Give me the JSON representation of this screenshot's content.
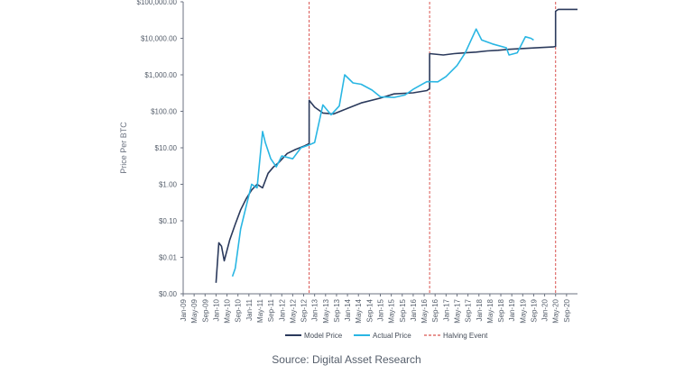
{
  "chart_data": {
    "type": "line",
    "ylabel": "Price Per BTC",
    "yscale": "log",
    "ylim": [
      0.001,
      100000
    ],
    "y_ticks": [
      {
        "value": 0.001,
        "label": "$0.00"
      },
      {
        "value": 0.01,
        "label": "$0.01"
      },
      {
        "value": 0.1,
        "label": "$0.10"
      },
      {
        "value": 1,
        "label": "$1.00"
      },
      {
        "value": 10,
        "label": "$10.00"
      },
      {
        "value": 100,
        "label": "$100.00"
      },
      {
        "value": 1000,
        "label": "$1,000.00"
      },
      {
        "value": 10000,
        "label": "$10,000.00"
      },
      {
        "value": 100000,
        "label": "$100,000.00"
      }
    ],
    "xlim": [
      "2009-01",
      "2021-01"
    ],
    "x_ticks": [
      "Jan-09",
      "May-09",
      "Sep-09",
      "Jan-10",
      "May-10",
      "Sep-10",
      "Jan-11",
      "May-11",
      "Sep-11",
      "Jan-12",
      "May-12",
      "Sep-12",
      "Jan-13",
      "May-13",
      "Sep-13",
      "Jan-14",
      "May-14",
      "Sep-14",
      "Jan-15",
      "May-15",
      "Sep-15",
      "Jan-16",
      "May-16",
      "Sep-16",
      "Jan-17",
      "May-17",
      "Sep-17",
      "Jan-18",
      "May-18",
      "Sep-18",
      "Jan-19",
      "May-19",
      "Sep-19",
      "Jan-20",
      "May-20",
      "Sep-20"
    ],
    "grid": false,
    "legend_position": "bottom",
    "series": [
      {
        "name": "Model Price",
        "color": "#2b3a5c",
        "points": [
          [
            "2010-01",
            0.002
          ],
          [
            "2010-02",
            0.025
          ],
          [
            "2010-03",
            0.02
          ],
          [
            "2010-04",
            0.008
          ],
          [
            "2010-06",
            0.03
          ],
          [
            "2010-08",
            0.08
          ],
          [
            "2010-10",
            0.2
          ],
          [
            "2010-12",
            0.4
          ],
          [
            "2011-02",
            0.7
          ],
          [
            "2011-04",
            1.0
          ],
          [
            "2011-06",
            0.8
          ],
          [
            "2011-08",
            2.0
          ],
          [
            "2011-10",
            3.0
          ],
          [
            "2011-12",
            4.0
          ],
          [
            "2012-03",
            7.0
          ],
          [
            "2012-06",
            9.0
          ],
          [
            "2012-09",
            11.0
          ],
          [
            "2012-11",
            13.0
          ],
          [
            "2012-11",
            200.0
          ],
          [
            "2013-01",
            130.0
          ],
          [
            "2013-04",
            90.0
          ],
          [
            "2013-08",
            85.0
          ],
          [
            "2014-01",
            120.0
          ],
          [
            "2014-06",
            170.0
          ],
          [
            "2015-01",
            230.0
          ],
          [
            "2015-06",
            300.0
          ],
          [
            "2016-01",
            320.0
          ],
          [
            "2016-06",
            370.0
          ],
          [
            "2016-07",
            420.0
          ],
          [
            "2016-07",
            3800.0
          ],
          [
            "2016-12",
            3500.0
          ],
          [
            "2017-04",
            3800.0
          ],
          [
            "2017-08",
            4000.0
          ],
          [
            "2017-12",
            4200.0
          ],
          [
            "2018-04",
            4500.0
          ],
          [
            "2018-08",
            4700.0
          ],
          [
            "2018-12",
            5000.0
          ],
          [
            "2019-06",
            5300.0
          ],
          [
            "2019-12",
            5600.0
          ],
          [
            "2020-04",
            5800.0
          ],
          [
            "2020-05",
            6000.0
          ],
          [
            "2020-05",
            55000.0
          ],
          [
            "2020-06",
            62000.0
          ],
          [
            "2021-01",
            62000.0
          ]
        ]
      },
      {
        "name": "Actual Price",
        "color": "#29b6e3",
        "points": [
          [
            "2010-07",
            0.003
          ],
          [
            "2010-08",
            0.005
          ],
          [
            "2010-10",
            0.06
          ],
          [
            "2010-12",
            0.25
          ],
          [
            "2011-02",
            1.0
          ],
          [
            "2011-04",
            0.8
          ],
          [
            "2011-06",
            28.0
          ],
          [
            "2011-07",
            14.0
          ],
          [
            "2011-09",
            5.0
          ],
          [
            "2011-11",
            3.0
          ],
          [
            "2012-01",
            6.0
          ],
          [
            "2012-05",
            5.0
          ],
          [
            "2012-08",
            10.0
          ],
          [
            "2012-11",
            12.0
          ],
          [
            "2013-01",
            14.0
          ],
          [
            "2013-04",
            150.0
          ],
          [
            "2013-07",
            80.0
          ],
          [
            "2013-10",
            140.0
          ],
          [
            "2013-12",
            1000.0
          ],
          [
            "2014-03",
            600.0
          ],
          [
            "2014-06",
            550.0
          ],
          [
            "2014-10",
            380.0
          ],
          [
            "2015-01",
            250.0
          ],
          [
            "2015-06",
            240.0
          ],
          [
            "2015-10",
            280.0
          ],
          [
            "2016-01",
            400.0
          ],
          [
            "2016-06",
            650.0
          ],
          [
            "2016-10",
            640.0
          ],
          [
            "2017-01",
            900.0
          ],
          [
            "2017-05",
            1800.0
          ],
          [
            "2017-08",
            4000.0
          ],
          [
            "2017-12",
            18000.0
          ],
          [
            "2018-02",
            9000.0
          ],
          [
            "2018-06",
            7000.0
          ],
          [
            "2018-11",
            5500.0
          ],
          [
            "2018-12",
            3500.0
          ],
          [
            "2019-03",
            4000.0
          ],
          [
            "2019-06",
            11000.0
          ],
          [
            "2019-08",
            10000.0
          ],
          [
            "2019-09",
            9000.0
          ]
        ]
      }
    ],
    "halving_events": [
      "2012-11",
      "2016-07",
      "2020-05"
    ],
    "legend": [
      {
        "label": "Model Price",
        "color": "#2b3a5c",
        "style": "solid"
      },
      {
        "label": "Actual Price",
        "color": "#29b6e3",
        "style": "solid"
      },
      {
        "label": "Halving Event",
        "color": "#d9534f",
        "style": "dashed"
      }
    ]
  },
  "source_text": "Source: Digital Asset Research"
}
